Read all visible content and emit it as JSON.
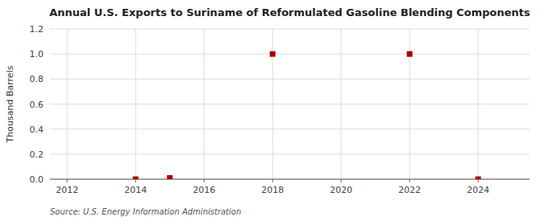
{
  "chart_data": {
    "type": "scatter",
    "title": "Annual U.S. Exports to Suriname of Reformulated Gasoline Blending Components",
    "y_label": "Thousand Barrels",
    "source": "Source: U.S. Energy Information Administration",
    "x": [
      2014,
      2015,
      2018,
      2022,
      2024
    ],
    "values": [
      0.0,
      0.01,
      1.0,
      1.0,
      0.0
    ],
    "color": "#aa0000",
    "marker": "square",
    "xlim": [
      2011.5,
      2025.5
    ],
    "xticks": [
      2012,
      2014,
      2016,
      2018,
      2020,
      2022,
      2024
    ],
    "ylim": [
      0,
      1.2
    ],
    "yticks": [
      {
        "value": 0,
        "label": "0.0"
      },
      0.2,
      0.4,
      0.6,
      0.8,
      {
        "value": 1,
        "label": "1.0"
      },
      1.2
    ],
    "grid": true
  }
}
